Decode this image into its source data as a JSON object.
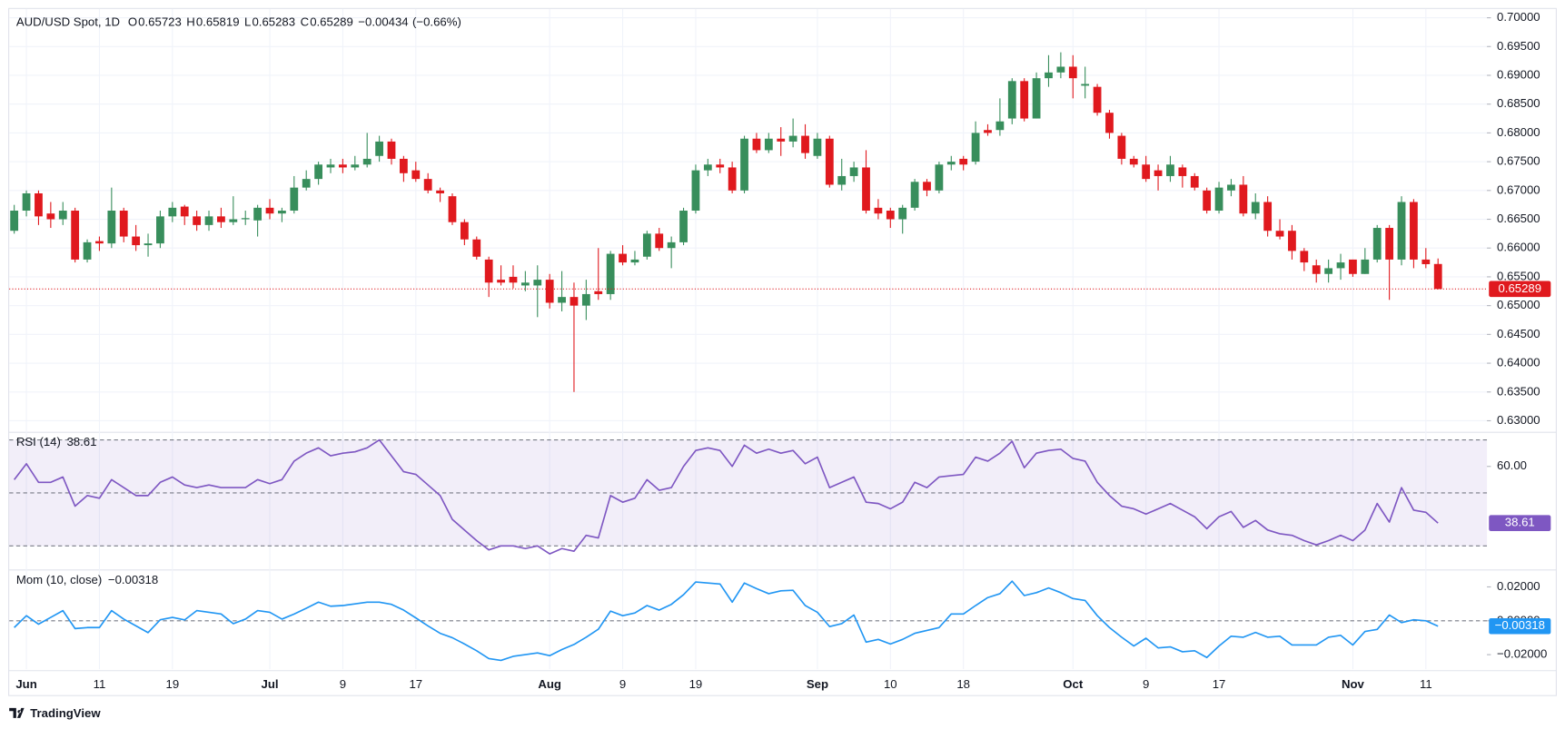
{
  "chart_data": [
    {
      "type": "candlestick",
      "title": "AUD/USD Spot, 1D",
      "ohlc_labels": [
        "O",
        "H",
        "L",
        "C"
      ],
      "change": "−0.00434",
      "change_percent": "(−0.66%)",
      "up_color": "#388e5c",
      "down_color": "#e0191e",
      "grid": true,
      "categories": [
        null,
        "Jun",
        null,
        null,
        null,
        null,
        null,
        "11",
        null,
        null,
        null,
        null,
        null,
        "19",
        null,
        null,
        null,
        null,
        null,
        null,
        null,
        "Jul",
        null,
        null,
        null,
        null,
        null,
        "9",
        null,
        null,
        null,
        null,
        null,
        "17",
        null,
        null,
        null,
        null,
        null,
        null,
        null,
        null,
        null,
        null,
        "Aug",
        null,
        null,
        null,
        null,
        null,
        "9",
        null,
        null,
        null,
        null,
        null,
        "19",
        null,
        null,
        null,
        null,
        null,
        null,
        null,
        null,
        null,
        "Sep",
        null,
        null,
        null,
        null,
        null,
        "10",
        null,
        null,
        null,
        null,
        null,
        "18",
        null,
        null,
        null,
        null,
        null,
        null,
        null,
        null,
        "Oct",
        null,
        null,
        null,
        null,
        null,
        "9",
        null,
        null,
        null,
        null,
        null,
        "17",
        null,
        null,
        null,
        null,
        null,
        null,
        null,
        null,
        null,
        null,
        "Nov",
        null,
        null,
        null,
        null,
        null,
        "11",
        null
      ],
      "open": [
        0.663,
        0.6665,
        0.6695,
        0.666,
        0.665,
        0.6665,
        0.658,
        0.6612,
        0.6608,
        0.6665,
        0.662,
        0.6605,
        0.6608,
        0.6655,
        0.6672,
        0.6655,
        0.664,
        0.6655,
        0.6645,
        0.665,
        0.6648,
        0.667,
        0.666,
        0.6665,
        0.6705,
        0.672,
        0.674,
        0.6745,
        0.674,
        0.6745,
        0.676,
        0.6785,
        0.6755,
        0.6735,
        0.672,
        0.67,
        0.669,
        0.6645,
        0.6615,
        0.658,
        0.6545,
        0.655,
        0.6535,
        0.6535,
        0.6545,
        0.6505,
        0.6515,
        0.65,
        0.6525,
        0.652,
        0.659,
        0.6575,
        0.6585,
        0.6625,
        0.66,
        0.661,
        0.6665,
        0.6735,
        0.6745,
        0.674,
        0.67,
        0.679,
        0.677,
        0.679,
        0.6785,
        0.6795,
        0.676,
        0.679,
        0.671,
        0.6725,
        0.674,
        0.667,
        0.6665,
        0.665,
        0.667,
        0.6715,
        0.67,
        0.6745,
        0.6755,
        0.675,
        0.6805,
        0.6805,
        0.6825,
        0.689,
        0.6825,
        0.6895,
        0.6905,
        0.6915,
        0.6882,
        0.688,
        0.6835,
        0.6795,
        0.6755,
        0.6745,
        0.6735,
        0.6725,
        0.674,
        0.6725,
        0.67,
        0.6665,
        0.67,
        0.671,
        0.666,
        0.668,
        0.663,
        0.663,
        0.6595,
        0.657,
        0.6555,
        0.6565,
        0.658,
        0.6555,
        0.658,
        0.6635,
        0.658,
        0.668,
        0.658,
        0.65723
      ],
      "high": [
        0.6675,
        0.67,
        0.67,
        0.668,
        0.668,
        0.667,
        0.6615,
        0.662,
        0.6705,
        0.667,
        0.664,
        0.6625,
        0.6665,
        0.668,
        0.6675,
        0.6665,
        0.6665,
        0.667,
        0.669,
        0.6665,
        0.6675,
        0.6685,
        0.667,
        0.6725,
        0.6735,
        0.675,
        0.6755,
        0.6755,
        0.676,
        0.68,
        0.6795,
        0.679,
        0.676,
        0.675,
        0.673,
        0.6705,
        0.6695,
        0.665,
        0.662,
        0.6585,
        0.657,
        0.657,
        0.656,
        0.657,
        0.6555,
        0.656,
        0.654,
        0.6545,
        0.66,
        0.6595,
        0.6605,
        0.6595,
        0.663,
        0.6635,
        0.662,
        0.667,
        0.6745,
        0.6755,
        0.6755,
        0.675,
        0.6795,
        0.68,
        0.68,
        0.681,
        0.6825,
        0.6815,
        0.68,
        0.6795,
        0.6755,
        0.675,
        0.677,
        0.6685,
        0.667,
        0.6675,
        0.672,
        0.672,
        0.675,
        0.676,
        0.676,
        0.682,
        0.6815,
        0.686,
        0.6895,
        0.6895,
        0.6905,
        0.6935,
        0.694,
        0.6935,
        0.6915,
        0.6885,
        0.684,
        0.68,
        0.676,
        0.676,
        0.6745,
        0.676,
        0.6745,
        0.673,
        0.6705,
        0.6715,
        0.672,
        0.6725,
        0.6695,
        0.669,
        0.665,
        0.664,
        0.66,
        0.658,
        0.658,
        0.659,
        0.658,
        0.66,
        0.664,
        0.664,
        0.669,
        0.6685,
        0.66,
        0.65819
      ],
      "low": [
        0.6625,
        0.6655,
        0.664,
        0.6635,
        0.664,
        0.6575,
        0.6575,
        0.6595,
        0.66,
        0.661,
        0.6595,
        0.6585,
        0.66,
        0.6645,
        0.664,
        0.663,
        0.663,
        0.6635,
        0.664,
        0.664,
        0.662,
        0.665,
        0.6645,
        0.666,
        0.67,
        0.671,
        0.673,
        0.673,
        0.6735,
        0.674,
        0.675,
        0.6745,
        0.6715,
        0.6715,
        0.6695,
        0.668,
        0.664,
        0.6605,
        0.658,
        0.6515,
        0.6535,
        0.653,
        0.6525,
        0.648,
        0.6495,
        0.649,
        0.635,
        0.6475,
        0.651,
        0.651,
        0.657,
        0.657,
        0.658,
        0.6595,
        0.6565,
        0.6605,
        0.666,
        0.6725,
        0.673,
        0.6695,
        0.6695,
        0.6765,
        0.6765,
        0.676,
        0.6775,
        0.6755,
        0.6755,
        0.6705,
        0.67,
        0.6715,
        0.666,
        0.665,
        0.6635,
        0.6625,
        0.6665,
        0.669,
        0.6695,
        0.6735,
        0.6735,
        0.6745,
        0.6795,
        0.6795,
        0.6815,
        0.682,
        0.6825,
        0.688,
        0.6895,
        0.686,
        0.686,
        0.683,
        0.679,
        0.6745,
        0.674,
        0.6715,
        0.67,
        0.6715,
        0.6705,
        0.67,
        0.666,
        0.666,
        0.669,
        0.6655,
        0.665,
        0.662,
        0.6615,
        0.658,
        0.656,
        0.654,
        0.654,
        0.6545,
        0.655,
        0.6555,
        0.6575,
        0.651,
        0.657,
        0.6565,
        0.6565,
        0.65283
      ],
      "close": [
        0.6665,
        0.6695,
        0.6655,
        0.665,
        0.6665,
        0.658,
        0.661,
        0.6608,
        0.6665,
        0.662,
        0.6605,
        0.6608,
        0.6655,
        0.667,
        0.6655,
        0.664,
        0.6655,
        0.6645,
        0.665,
        0.6652,
        0.667,
        0.666,
        0.6665,
        0.6705,
        0.672,
        0.6745,
        0.6745,
        0.674,
        0.6745,
        0.6755,
        0.6785,
        0.6755,
        0.673,
        0.672,
        0.67,
        0.6695,
        0.6645,
        0.6615,
        0.6585,
        0.654,
        0.654,
        0.654,
        0.654,
        0.6545,
        0.6505,
        0.6515,
        0.65,
        0.652,
        0.652,
        0.659,
        0.6575,
        0.658,
        0.6625,
        0.66,
        0.661,
        0.6665,
        0.6735,
        0.6745,
        0.674,
        0.67,
        0.679,
        0.677,
        0.679,
        0.6785,
        0.6795,
        0.6765,
        0.679,
        0.671,
        0.6725,
        0.674,
        0.6665,
        0.666,
        0.665,
        0.667,
        0.6715,
        0.67,
        0.6745,
        0.675,
        0.6745,
        0.68,
        0.68,
        0.682,
        0.689,
        0.6825,
        0.6895,
        0.6905,
        0.6915,
        0.6895,
        0.6885,
        0.6835,
        0.68,
        0.6755,
        0.6745,
        0.672,
        0.6725,
        0.6745,
        0.6725,
        0.6705,
        0.6665,
        0.6705,
        0.671,
        0.666,
        0.668,
        0.663,
        0.662,
        0.6595,
        0.6575,
        0.6555,
        0.6565,
        0.6575,
        0.6555,
        0.658,
        0.6635,
        0.658,
        0.668,
        0.658,
        0.6572,
        0.65289
      ],
      "ylim": [
        0.6286,
        0.7017
      ],
      "yticks": [
        {
          "value": 0.63,
          "label": "0.63000"
        },
        {
          "value": 0.635,
          "label": "0.63500"
        },
        {
          "value": 0.64,
          "label": "0.64000"
        },
        {
          "value": 0.645,
          "label": "0.64500"
        },
        {
          "value": 0.65,
          "label": "0.65000"
        },
        {
          "value": 0.655,
          "label": "0.65500"
        },
        {
          "value": 0.66,
          "label": "0.66000"
        },
        {
          "value": 0.665,
          "label": "0.66500"
        },
        {
          "value": 0.67,
          "label": "0.67000"
        },
        {
          "value": 0.675,
          "label": "0.67500"
        },
        {
          "value": 0.68,
          "label": "0.68000"
        },
        {
          "value": 0.685,
          "label": "0.68500"
        },
        {
          "value": 0.69,
          "label": "0.69000"
        },
        {
          "value": 0.695,
          "label": "0.69500"
        },
        {
          "value": 0.7,
          "label": "0.70000"
        }
      ]
    },
    {
      "type": "line",
      "title": "RSI (14)",
      "color": "#7e57c2",
      "values": [
        55,
        61,
        54,
        54,
        56,
        45,
        49,
        48,
        55,
        52,
        49,
        49,
        54,
        56,
        53,
        52,
        53,
        52,
        52,
        52,
        55,
        53.5,
        55,
        62,
        65,
        67,
        64,
        65,
        65.5,
        67,
        70,
        64,
        58,
        57,
        53,
        49,
        40,
        36,
        32,
        28.5,
        30,
        30,
        29,
        30,
        27,
        29,
        28,
        34,
        33,
        49,
        46.5,
        48,
        55,
        51,
        52,
        60,
        66,
        67,
        66,
        60,
        68,
        65,
        66.5,
        65,
        66,
        61,
        63.5,
        52,
        54,
        56,
        46.5,
        46,
        44,
        46.5,
        54,
        52,
        56,
        56.5,
        57,
        63.5,
        62,
        65,
        69.5,
        59.5,
        65,
        66,
        66.5,
        63,
        62,
        54,
        49,
        45,
        44,
        42,
        44,
        46,
        43.5,
        41,
        36.5,
        41,
        43,
        37,
        39.6,
        36,
        34.6,
        34,
        32,
        30.4,
        32,
        34,
        32,
        36,
        46,
        39,
        52,
        43.5,
        42.7,
        38.61
      ],
      "levels": [
        70,
        50,
        30
      ],
      "ylim": [
        21.5,
        72.3
      ],
      "yticks": [
        {
          "value": 60,
          "label": "60.00"
        }
      ]
    },
    {
      "type": "line",
      "title": "Mom (10, close)",
      "color": "#2196f3",
      "values": [
        -0.004,
        0.003,
        -0.002,
        0.002,
        0.006,
        -0.0046,
        -0.004,
        -0.004,
        0.006,
        0.001,
        -0.003,
        -0.007,
        0.0006,
        0.002,
        0.0005,
        0.006,
        0.005,
        0.004,
        -0.0017,
        0.001,
        0.006,
        0.005,
        0.001,
        0.004,
        0.0074,
        0.011,
        0.0086,
        0.009,
        0.01,
        0.011,
        0.011,
        0.0097,
        0.0063,
        0.0017,
        -0.003,
        -0.0074,
        -0.01,
        -0.0137,
        -0.0177,
        -0.0223,
        -0.0234,
        -0.021,
        -0.02,
        -0.019,
        -0.0206,
        -0.017,
        -0.014,
        -0.0097,
        -0.005,
        0.0057,
        0.003,
        0.0046,
        0.009,
        0.0063,
        0.0097,
        0.0154,
        0.0229,
        0.0223,
        0.0217,
        0.011,
        0.0223,
        0.019,
        0.016,
        0.0177,
        0.018,
        0.009,
        0.005,
        -0.0034,
        -0.0017,
        0.0034,
        -0.0126,
        -0.011,
        -0.0137,
        -0.011,
        -0.0074,
        -0.0057,
        -0.004,
        0.004,
        0.004,
        0.009,
        0.0137,
        0.016,
        0.0234,
        0.0149,
        0.0166,
        0.0194,
        0.0166,
        0.0131,
        0.012,
        0.003,
        -0.004,
        -0.0097,
        -0.0149,
        -0.0103,
        -0.016,
        -0.0154,
        -0.0183,
        -0.0177,
        -0.0217,
        -0.0149,
        -0.0091,
        -0.0097,
        -0.0069,
        -0.0097,
        -0.0091,
        -0.0143,
        -0.0143,
        -0.0143,
        -0.0097,
        -0.0086,
        -0.0143,
        -0.0063,
        -0.0051,
        0.0034,
        -0.0011,
        0.0006,
        0,
        -0.00318
      ],
      "value_label": "−0.00318",
      "levels": [
        0
      ],
      "ylim": [
        -0.02857,
        0.02914
      ],
      "yticks": [
        {
          "value": 0.02,
          "label": "0.02000"
        },
        {
          "value": 0,
          "label": "0.00000"
        },
        {
          "value": -0.02,
          "label": "−0.02000"
        }
      ]
    }
  ],
  "brand": "TradingView"
}
